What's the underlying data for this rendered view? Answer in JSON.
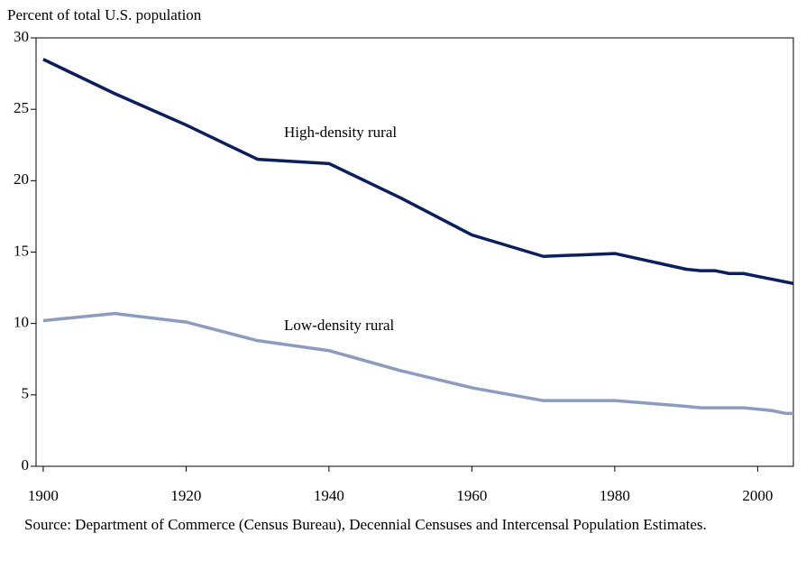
{
  "chart_data": {
    "type": "line",
    "y_axis_label": "Percent of total U.S. population",
    "x": [
      1900,
      1910,
      1920,
      1930,
      1940,
      1950,
      1960,
      1970,
      1980,
      1990,
      1992,
      1994,
      1996,
      1998,
      2000,
      2002,
      2004,
      2005
    ],
    "series": [
      {
        "name": "High-density rural",
        "color": "#0b1f5e",
        "values": [
          28.5,
          26.1,
          23.9,
          21.5,
          21.2,
          18.8,
          16.2,
          14.7,
          14.9,
          13.8,
          13.7,
          13.7,
          13.5,
          13.5,
          13.3,
          13.1,
          12.9,
          12.8
        ]
      },
      {
        "name": "Low-density rural",
        "color": "#8c9cbf",
        "values": [
          10.2,
          10.7,
          10.1,
          8.8,
          8.1,
          6.7,
          5.5,
          4.6,
          4.6,
          4.2,
          4.1,
          4.1,
          4.1,
          4.1,
          4.0,
          3.9,
          3.7,
          3.7
        ]
      }
    ],
    "xlim": [
      1899,
      2005
    ],
    "xticks": [
      1900,
      1920,
      1940,
      1960,
      1980,
      2000
    ],
    "ylim": [
      0,
      30
    ],
    "yticks": [
      0,
      5,
      10,
      15,
      20,
      25,
      30
    ],
    "grid": false,
    "source": "Source:  Department of Commerce (Census Bureau), Decennial Censuses and Intercensal Population Estimates."
  }
}
